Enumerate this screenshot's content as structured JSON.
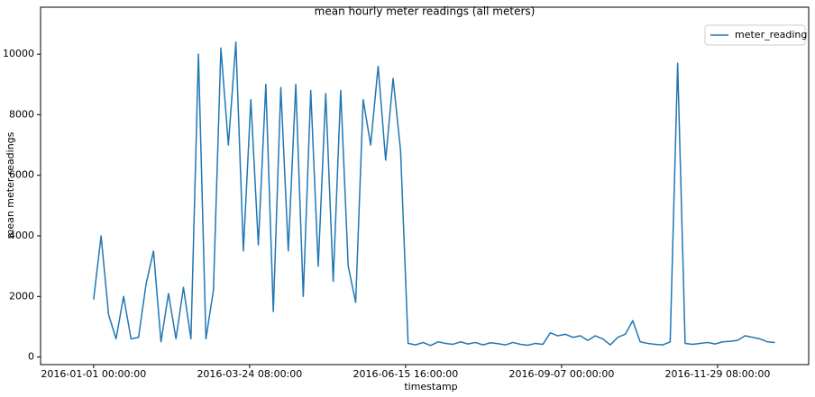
{
  "chart_data": {
    "type": "line",
    "title": "mean hourly meter readings (all meters)",
    "x_label": "timestamp",
    "y_label": "mean meter readings",
    "x": [
      "2016-01-01 00:00:00",
      "2016-01-05 00:00:00",
      "2016-01-09 00:00:00",
      "2016-01-13 00:00:00",
      "2016-01-17 00:00:00",
      "2016-01-21 00:00:00",
      "2016-01-25 00:00:00",
      "2016-01-29 00:00:00",
      "2016-02-02 00:00:00",
      "2016-02-06 00:00:00",
      "2016-02-10 00:00:00",
      "2016-02-14 00:00:00",
      "2016-02-18 00:00:00",
      "2016-02-22 00:00:00",
      "2016-02-26 00:00:00",
      "2016-03-01 00:00:00",
      "2016-03-05 00:00:00",
      "2016-03-09 00:00:00",
      "2016-03-13 00:00:00",
      "2016-03-17 00:00:00",
      "2016-03-21 00:00:00",
      "2016-03-25 00:00:00",
      "2016-03-29 00:00:00",
      "2016-04-02 00:00:00",
      "2016-04-06 00:00:00",
      "2016-04-10 00:00:00",
      "2016-04-14 00:00:00",
      "2016-04-18 00:00:00",
      "2016-04-22 00:00:00",
      "2016-04-26 00:00:00",
      "2016-04-30 00:00:00",
      "2016-05-04 00:00:00",
      "2016-05-08 00:00:00",
      "2016-05-12 00:00:00",
      "2016-05-16 00:00:00",
      "2016-05-20 00:00:00",
      "2016-05-24 00:00:00",
      "2016-05-28 00:00:00",
      "2016-06-01 00:00:00",
      "2016-06-05 00:00:00",
      "2016-06-09 00:00:00",
      "2016-06-13 00:00:00",
      "2016-06-17 00:00:00",
      "2016-06-21 00:00:00",
      "2016-06-25 00:00:00",
      "2016-06-29 00:00:00",
      "2016-07-03 00:00:00",
      "2016-07-07 00:00:00",
      "2016-07-11 00:00:00",
      "2016-07-15 00:00:00",
      "2016-07-19 00:00:00",
      "2016-07-23 00:00:00",
      "2016-07-27 00:00:00",
      "2016-07-31 00:00:00",
      "2016-08-04 00:00:00",
      "2016-08-08 00:00:00",
      "2016-08-12 00:00:00",
      "2016-08-16 00:00:00",
      "2016-08-20 00:00:00",
      "2016-08-24 00:00:00",
      "2016-08-28 00:00:00",
      "2016-09-01 00:00:00",
      "2016-09-05 00:00:00",
      "2016-09-09 00:00:00",
      "2016-09-13 00:00:00",
      "2016-09-17 00:00:00",
      "2016-09-21 00:00:00",
      "2016-09-25 00:00:00",
      "2016-09-29 00:00:00",
      "2016-10-03 00:00:00",
      "2016-10-07 00:00:00",
      "2016-10-11 00:00:00",
      "2016-10-15 00:00:00",
      "2016-10-19 00:00:00",
      "2016-10-23 00:00:00",
      "2016-10-27 00:00:00",
      "2016-10-31 00:00:00",
      "2016-11-04 00:00:00",
      "2016-11-08 00:00:00",
      "2016-11-12 00:00:00",
      "2016-11-16 00:00:00",
      "2016-11-20 00:00:00",
      "2016-11-24 00:00:00",
      "2016-11-28 00:00:00",
      "2016-12-02 00:00:00",
      "2016-12-06 00:00:00",
      "2016-12-10 00:00:00",
      "2016-12-14 00:00:00",
      "2016-12-18 00:00:00",
      "2016-12-22 00:00:00",
      "2016-12-26 00:00:00",
      "2016-12-30 00:00:00"
    ],
    "series": [
      {
        "name": "meter_reading",
        "color": "#1f77b4",
        "values": [
          1900,
          4000,
          1400,
          600,
          2000,
          600,
          650,
          2400,
          3500,
          500,
          2100,
          600,
          2300,
          600,
          10000,
          600,
          2200,
          10200,
          7000,
          10400,
          3500,
          8500,
          3700,
          9000,
          1500,
          8900,
          3500,
          9000,
          2000,
          8800,
          3000,
          8700,
          2500,
          8800,
          3000,
          1800,
          8500,
          7000,
          9600,
          6500,
          9200,
          6800,
          450,
          400,
          480,
          380,
          500,
          450,
          420,
          500,
          430,
          480,
          400,
          470,
          440,
          400,
          480,
          420,
          390,
          450,
          420,
          800,
          700,
          750,
          650,
          700,
          550,
          700,
          600,
          400,
          650,
          750,
          1200,
          500,
          450,
          420,
          400,
          500,
          9700,
          450,
          420,
          450,
          480,
          430,
          500,
          520,
          550,
          700,
          650,
          600,
          500,
          480
        ]
      }
    ],
    "xlim": [
      "2015-12-03 16:00:00",
      "2017-01-17 00:00:00"
    ],
    "xticks": [
      "2016-01-01 00:00:00",
      "2016-03-24 08:00:00",
      "2016-06-15 16:00:00",
      "2016-09-07 00:00:00",
      "2016-11-29 08:00:00"
    ],
    "ylim": [
      -250,
      11550
    ],
    "yticks": [
      0,
      2000,
      4000,
      6000,
      8000,
      10000
    ],
    "legend": "upper right"
  }
}
